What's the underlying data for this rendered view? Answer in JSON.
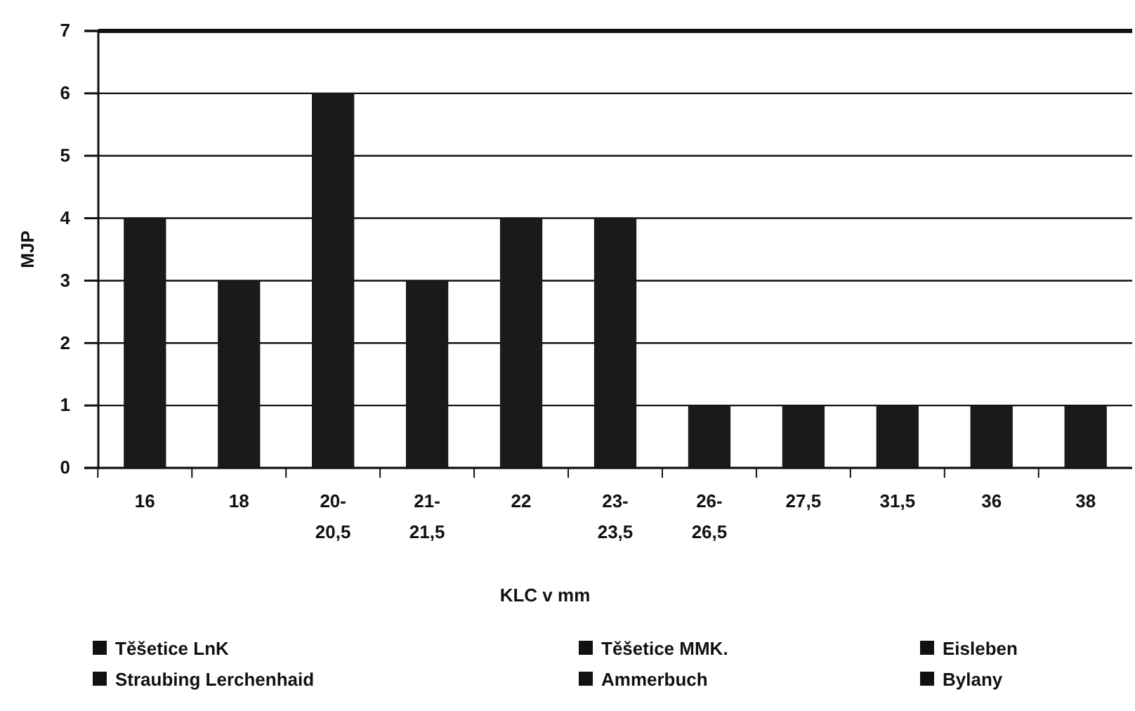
{
  "chart_data": {
    "type": "bar",
    "xlabel": "KLC v mm",
    "ylabel": "MJP",
    "categories": [
      "16",
      "18",
      "20-\n20,5",
      "21-\n21,5",
      "22",
      "23-\n23,5",
      "26-\n26,5",
      "27,5",
      "31,5",
      "36",
      "38"
    ],
    "values": [
      4,
      3,
      6,
      3,
      4,
      4,
      1,
      1,
      1,
      1,
      1
    ],
    "color": "#1a1a1a",
    "ylim": [
      0,
      7
    ],
    "yticks": [
      0,
      1,
      2,
      3,
      4,
      5,
      6,
      7
    ],
    "grid": "y",
    "annotations": [
      "Těšetice LnK",
      "Těšetice MMK.",
      "Eisleben",
      "Straubing Lerchenhaid",
      "Ammerbuch",
      "Bylany"
    ]
  }
}
